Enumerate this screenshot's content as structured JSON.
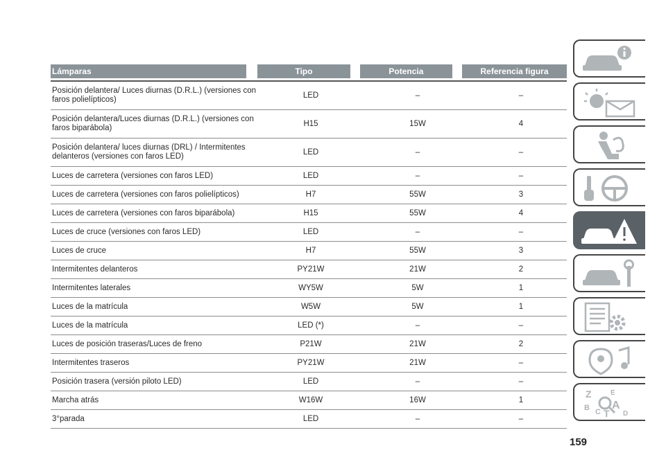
{
  "table": {
    "headers": [
      "Lámparas",
      "Tipo",
      "Potencia",
      "Referencia figura"
    ],
    "rows": [
      {
        "lamp": "Posición delantera/ Luces diurnas (D.R.L.) (versiones con faros polielípticos)",
        "type": "LED",
        "power": "–",
        "ref": "–"
      },
      {
        "lamp": "Posición delantera/Luces diurnas (D.R.L.) (versiones con faros biparábola)",
        "type": "H15",
        "power": "15W",
        "ref": "4"
      },
      {
        "lamp": "Posición delantera/ luces diurnas (DRL) / Intermitentes delanteros (versiones con faros LED)",
        "type": "LED",
        "power": "–",
        "ref": "–"
      },
      {
        "lamp": "Luces de carretera (versiones con faros LED)",
        "type": "LED",
        "power": "–",
        "ref": "–"
      },
      {
        "lamp": "Luces de carretera (versiones con faros polielípticos)",
        "type": "H7",
        "power": "55W",
        "ref": "3"
      },
      {
        "lamp": "Luces de carretera (versiones con faros biparábola)",
        "type": "H15",
        "power": "55W",
        "ref": "4"
      },
      {
        "lamp": "Luces de cruce (versiones con faros LED)",
        "type": "LED",
        "power": "–",
        "ref": "–"
      },
      {
        "lamp": "Luces de cruce",
        "type": "H7",
        "power": "55W",
        "ref": "3"
      },
      {
        "lamp": "Intermitentes delanteros",
        "type": "PY21W",
        "power": "21W",
        "ref": "2"
      },
      {
        "lamp": "Intermitentes laterales",
        "type": "WY5W",
        "power": "5W",
        "ref": "1"
      },
      {
        "lamp": "Luces de la matrícula",
        "type": "W5W",
        "power": "5W",
        "ref": "1"
      },
      {
        "lamp": "Luces de la matrícula",
        "type": "LED (*)",
        "power": "–",
        "ref": "–"
      },
      {
        "lamp": "Luces de posición traseras/Luces de freno",
        "type": "P21W",
        "power": "21W",
        "ref": "2"
      },
      {
        "lamp": "Intermitentes traseros",
        "type": "PY21W",
        "power": "21W",
        "ref": "–"
      },
      {
        "lamp": "Posición trasera (versión piloto LED)",
        "type": "LED",
        "power": "–",
        "ref": "–"
      },
      {
        "lamp": "Marcha atrás",
        "type": "W16W",
        "power": "16W",
        "ref": "1"
      },
      {
        "lamp": "3°parada",
        "type": "LED",
        "power": "–",
        "ref": "–"
      }
    ]
  },
  "page_number": "159",
  "sidebar": {
    "tabs": [
      {
        "icon": "car-info-icon"
      },
      {
        "icon": "warning-lights-icon"
      },
      {
        "icon": "seat-airbag-icon"
      },
      {
        "icon": "key-steering-wheel-icon"
      },
      {
        "icon": "car-emergency-icon",
        "active": true
      },
      {
        "icon": "car-tools-icon"
      },
      {
        "icon": "specs-gear-icon"
      },
      {
        "icon": "media-navigation-icon"
      },
      {
        "icon": "index-letters-icon",
        "letters": [
          "Z",
          "E",
          "A",
          "B",
          "C",
          "T",
          "D"
        ]
      }
    ],
    "active_color": "#5a6268",
    "icon_color": "#b0b5b8"
  }
}
